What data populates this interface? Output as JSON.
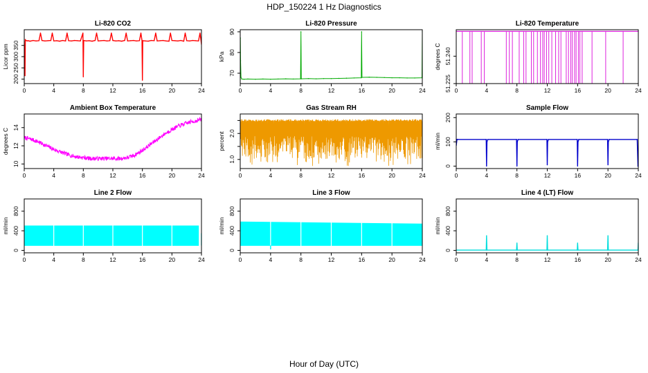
{
  "figure": {
    "title": "HDP_150224  1 Hz Diagnostics",
    "xlabel": "Hour of Day (UTC)"
  },
  "chart_data": [
    {
      "type": "line",
      "title": "Li-820 CO2",
      "ylabel": "Licor ppm",
      "color": "#ff0000",
      "xlim": [
        0,
        24
      ],
      "xticks": [
        0,
        4,
        8,
        12,
        16,
        20,
        24
      ],
      "ylim": [
        180,
        420
      ],
      "yticks": [
        200,
        250,
        300,
        350
      ],
      "x": [
        0,
        0.05,
        0.1,
        0.15,
        0.25,
        0.4,
        0.5,
        0.8,
        1.2,
        1.6,
        2.0,
        2.2,
        2.4,
        2.8,
        3.2,
        3.6,
        3.8,
        4.0,
        4.4,
        4.8,
        5.2,
        5.6,
        5.8,
        6.0,
        6.4,
        6.8,
        7.2,
        7.6,
        7.95,
        8.0,
        8.05,
        8.4,
        8.8,
        9.2,
        9.6,
        9.8,
        10.0,
        10.4,
        10.8,
        11.2,
        11.6,
        11.8,
        12.0,
        12.4,
        12.8,
        13.2,
        13.6,
        13.8,
        14.0,
        14.4,
        14.8,
        15.2,
        15.6,
        15.8,
        15.95,
        16.0,
        16.05,
        16.4,
        16.8,
        17.2,
        17.6,
        17.8,
        18.0,
        18.4,
        18.8,
        19.2,
        19.6,
        19.8,
        20.0,
        20.4,
        20.8,
        21.2,
        21.6,
        21.8,
        22.0,
        22.4,
        22.8,
        23.2,
        23.6,
        23.8,
        24.0
      ],
      "y": [
        370,
        230,
        215,
        375,
        372,
        370,
        371,
        369,
        372,
        370,
        371,
        405,
        372,
        370,
        371,
        372,
        405,
        370,
        371,
        369,
        372,
        370,
        405,
        371,
        370,
        372,
        371,
        370,
        405,
        210,
        372,
        370,
        371,
        369,
        372,
        405,
        370,
        371,
        372,
        370,
        371,
        405,
        372,
        370,
        371,
        369,
        372,
        405,
        370,
        371,
        372,
        370,
        371,
        405,
        372,
        195,
        371,
        370,
        369,
        372,
        371,
        405,
        370,
        371,
        372,
        370,
        369,
        405,
        372,
        371,
        370,
        372,
        369,
        405,
        371,
        370,
        372,
        371,
        370,
        405,
        355
      ]
    },
    {
      "type": "line",
      "title": "Li-820 Pressure",
      "ylabel": "kPa",
      "color": "#00aa00",
      "xlim": [
        0,
        24
      ],
      "xticks": [
        0,
        4,
        8,
        12,
        16,
        20,
        24
      ],
      "ylim": [
        65,
        91
      ],
      "yticks": [
        70,
        80,
        90
      ],
      "x": [
        0,
        0.02,
        0.05,
        0.1,
        0.2,
        0.5,
        1,
        2,
        3,
        4,
        5,
        6,
        7,
        7.95,
        8.0,
        8.05,
        9,
        10,
        11,
        12,
        13,
        14,
        15,
        15.95,
        16.0,
        16.05,
        17,
        18,
        19,
        20,
        21,
        22,
        23,
        23.95,
        24.0
      ],
      "y": [
        67,
        87,
        76,
        68,
        67.2,
        67.1,
        67.2,
        67.1,
        67.2,
        67.1,
        67.2,
        67.3,
        67.2,
        67.3,
        90,
        67.3,
        67.4,
        67.3,
        67.4,
        67.4,
        67.5,
        67.6,
        67.7,
        67.8,
        90,
        68,
        68.1,
        68,
        67.9,
        67.8,
        67.8,
        67.7,
        67.7,
        67.8,
        90
      ]
    },
    {
      "type": "line",
      "title": "Li-820 Temperature",
      "ylabel": "degrees C",
      "color": "#dd22dd",
      "xlim": [
        0,
        24
      ],
      "xticks": [
        0,
        4,
        8,
        12,
        16,
        20,
        24
      ],
      "ylim": [
        51.225,
        51.2545
      ],
      "yticks": [
        51.225,
        51.24
      ],
      "ytick_labels": [
        "51.225",
        "51.240"
      ],
      "baseline": 51.2536,
      "dips": [
        0.8,
        1.8,
        2.1,
        3.3,
        3.7,
        6.6,
        7.0,
        7.4,
        8.3,
        8.9,
        9.2,
        9.9,
        10.2,
        10.7,
        11.1,
        11.4,
        11.6,
        11.9,
        12.2,
        12.6,
        13.1,
        13.5,
        13.8,
        14.5,
        14.8,
        15.1,
        15.3,
        15.6,
        15.8,
        16.1,
        16.3,
        16.6,
        17.9,
        19.7,
        22.0
      ],
      "dip_value": 51.222
    },
    {
      "type": "line",
      "title": "Ambient Box Temperature",
      "ylabel": "degrees C",
      "color": "#ff00ff",
      "xlim": [
        0,
        24
      ],
      "xticks": [
        0,
        4,
        8,
        12,
        16,
        20,
        24
      ],
      "ylim": [
        9.5,
        15.5
      ],
      "yticks": [
        10,
        12,
        14
      ],
      "x": [
        0,
        1,
        2,
        3,
        4,
        5,
        6,
        7,
        8,
        9,
        10,
        11,
        12,
        13,
        14,
        15,
        16,
        17,
        18,
        19,
        20,
        21,
        22,
        23,
        24
      ],
      "y": [
        12.9,
        12.7,
        12.4,
        12.0,
        11.6,
        11.3,
        11.0,
        10.8,
        10.7,
        10.6,
        10.6,
        10.6,
        10.6,
        10.6,
        10.7,
        11.0,
        11.5,
        12.1,
        12.7,
        13.3,
        13.8,
        14.2,
        14.5,
        14.7,
        14.9
      ],
      "noise": 0.45
    },
    {
      "type": "line",
      "title": "Gas Stream RH",
      "ylabel": "percent",
      "color": "#ee9900",
      "xlim": [
        0,
        24
      ],
      "xticks": [
        0,
        4,
        8,
        12,
        16,
        20,
        24
      ],
      "ylim": [
        0.65,
        2.75
      ],
      "yticks": [
        1.0,
        1.5,
        2.0,
        2.5
      ],
      "ytick_labels": [
        "1.0",
        "",
        "2.0",
        ""
      ],
      "band_max": 2.55,
      "band_min_typical": 1.0,
      "band_min_extreme": 0.75
    },
    {
      "type": "line",
      "title": "Sample Flow",
      "ylabel": "ml/min",
      "color": "#0000cc",
      "xlim": [
        0,
        24
      ],
      "xticks": [
        0,
        4,
        8,
        12,
        16,
        20,
        24
      ],
      "ylim": [
        -10,
        215
      ],
      "yticks": [
        0,
        100,
        200
      ],
      "x": [
        0,
        0.1,
        0.2,
        3.95,
        4.0,
        4.05,
        4.15,
        7.95,
        8.0,
        8.05,
        8.15,
        11.95,
        12.0,
        12.05,
        12.15,
        15.95,
        16.0,
        16.05,
        16.15,
        19.95,
        20.0,
        20.05,
        20.15,
        23.85,
        23.95,
        24.0
      ],
      "y": [
        85,
        110,
        110,
        110,
        0,
        100,
        110,
        110,
        0,
        100,
        110,
        110,
        5,
        100,
        110,
        110,
        0,
        100,
        110,
        110,
        5,
        100,
        110,
        110,
        0,
        0
      ]
    },
    {
      "type": "area",
      "title": "Line 2 Flow",
      "ylabel": "ml/min",
      "color": "#00ffff",
      "xlim": [
        0,
        24
      ],
      "xticks": [
        0,
        4,
        8,
        12,
        16,
        20,
        24
      ],
      "ylim": [
        -50,
        1050
      ],
      "yticks": [
        0,
        400,
        800
      ],
      "band_top": 500,
      "band_bottom": 100,
      "band_x": [
        0,
        23.6
      ],
      "gaps": [
        4,
        8,
        12,
        16,
        20
      ],
      "tail": {
        "x": 24,
        "y": 350
      }
    },
    {
      "type": "area",
      "title": "Line 3 Flow",
      "ylabel": "ml/min",
      "color": "#00ffff",
      "xlim": [
        0,
        24
      ],
      "xticks": [
        0,
        4,
        8,
        12,
        16,
        20,
        24
      ],
      "ylim": [
        -50,
        1050
      ],
      "yticks": [
        0,
        400,
        800
      ],
      "band_top_start": 580,
      "band_top_end": 540,
      "band_bottom": 100,
      "band_x": [
        0,
        24
      ],
      "gaps": [
        4,
        8,
        12,
        16,
        20
      ],
      "dip": {
        "x": 4,
        "y": 20
      }
    },
    {
      "type": "line",
      "title": "Line 4 (LT) Flow",
      "ylabel": "ml/min",
      "color": "#00dddd",
      "xlim": [
        0,
        24
      ],
      "xticks": [
        0,
        4,
        8,
        12,
        16,
        20,
        24
      ],
      "ylim": [
        -50,
        1050
      ],
      "yticks": [
        0,
        400,
        800
      ],
      "x": [
        0,
        3.95,
        4.0,
        4.05,
        7.95,
        8.0,
        8.05,
        11.95,
        12.0,
        12.05,
        15.95,
        16.0,
        16.05,
        19.95,
        20.0,
        20.05,
        23.95,
        24.0
      ],
      "y": [
        5,
        5,
        300,
        5,
        5,
        150,
        5,
        5,
        300,
        5,
        5,
        150,
        5,
        5,
        300,
        5,
        5,
        150
      ]
    }
  ]
}
